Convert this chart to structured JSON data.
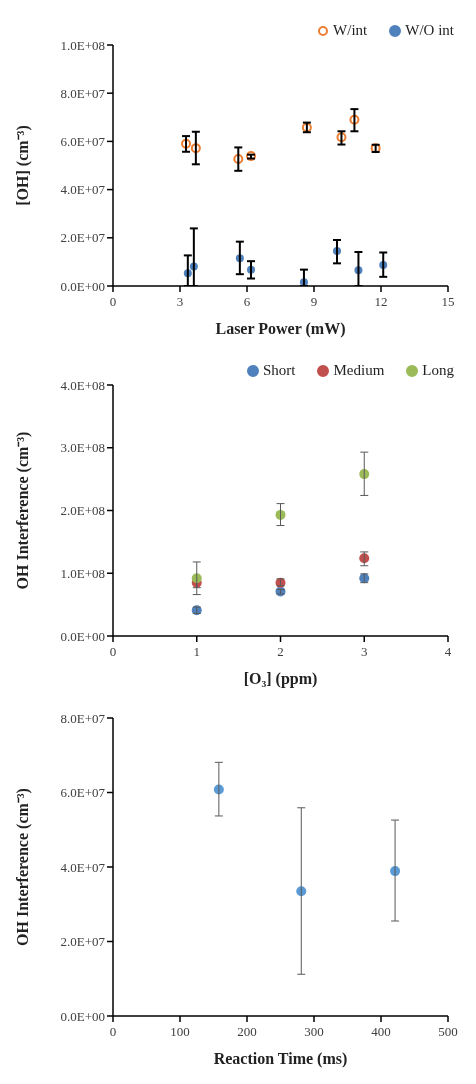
{
  "chart_data": [
    {
      "type": "scatter",
      "xlabel": "Laser Power (mW)",
      "ylabel": "[OH] (cm⁻³)",
      "xlim": [
        0,
        15
      ],
      "xticks": [
        0,
        3,
        6,
        9,
        12,
        15
      ],
      "ylim": [
        0,
        100000000
      ],
      "yticks": [
        {
          "value": 0,
          "label": "0.0E+00"
        },
        {
          "value": 20000000,
          "label": "2.0E+07"
        },
        {
          "value": 40000000,
          "label": "4.0E+07"
        },
        {
          "value": 60000000,
          "label": "6.0E+07"
        },
        {
          "value": 80000000,
          "label": "8.0E+07"
        },
        {
          "value": 100000000,
          "label": "1.0E+08"
        }
      ],
      "legend": "top right",
      "marker": "circle",
      "series": [
        {
          "name": "W/int",
          "color": "#ed7d31",
          "x": [
            3.27,
            3.71,
            5.61,
            6.18,
            8.68,
            10.23,
            10.81,
            11.76
          ],
          "values": [
            59000000,
            57200000,
            52700000,
            53900000,
            65800000,
            61700000,
            69000000,
            57200000
          ],
          "errors": [
            [
              55700000,
              62200000
            ],
            [
              50500000,
              64000000
            ],
            [
              47800000,
              57500000
            ],
            [
              52900000,
              54500000
            ],
            [
              63800000,
              67800000
            ],
            [
              58700000,
              64200000
            ],
            [
              64200000,
              73400000
            ],
            [
              55600000,
              58600000
            ]
          ]
        },
        {
          "name": "W/O int",
          "color": "#4f81bd",
          "x": [
            3.35,
            3.62,
            5.68,
            6.18,
            8.55,
            10.03,
            10.99,
            12.1
          ],
          "values": [
            5300000,
            8100000,
            11500000,
            6700000,
            1600000,
            14500000,
            6500000,
            8700000
          ],
          "errors": [
            [
              0,
              12700000
            ],
            [
              0,
              23900000
            ],
            [
              4900000,
              18400000
            ],
            [
              3100000,
              10300000
            ],
            [
              0,
              6800000
            ],
            [
              9400000,
              19100000
            ],
            [
              0,
              14100000
            ],
            [
              3800000,
              13900000
            ]
          ]
        }
      ]
    },
    {
      "type": "scatter",
      "xlabel": "[O₃] (ppm)",
      "ylabel": "OH Interference (cm⁻³)",
      "xlim": [
        0,
        4
      ],
      "xticks": [
        0,
        1,
        2,
        3,
        4
      ],
      "ylim": [
        0,
        400000000
      ],
      "yticks": [
        {
          "value": 0,
          "label": "0.0E+00"
        },
        {
          "value": 100000000,
          "label": "1.0E+08"
        },
        {
          "value": 200000000,
          "label": "2.0E+08"
        },
        {
          "value": 300000000,
          "label": "3.0E+08"
        },
        {
          "value": 400000000,
          "label": "4.0E+08"
        }
      ],
      "legend": "top right",
      "marker": "circle",
      "x": [
        1,
        2,
        3
      ],
      "series": [
        {
          "name": "Short",
          "color": "#4f81bd",
          "values": [
            41000000,
            71000000,
            92000000
          ],
          "errors": [
            [
              36000000,
              46000000
            ],
            [
              67000000,
              74000000
            ],
            [
              85000000,
              99000000
            ]
          ]
        },
        {
          "name": "Medium",
          "color": "#c0504d",
          "values": [
            85000000,
            85000000,
            124000000
          ],
          "errors": [
            [
              77000000,
              92000000
            ],
            [
              80000000,
              91000000
            ],
            [
              112000000,
              134000000
            ]
          ]
        },
        {
          "name": "Long",
          "color": "#9bbb59",
          "values": [
            92000000,
            193000000,
            258000000
          ],
          "errors": [
            [
              66000000,
              118000000
            ],
            [
              176000000,
              211000000
            ],
            [
              224000000,
              293000000
            ]
          ]
        }
      ]
    },
    {
      "type": "scatter",
      "xlabel": "Reaction Time (ms)",
      "ylabel": "OH Interference (cm⁻³)",
      "xlim": [
        0,
        500
      ],
      "xticks": [
        0,
        100,
        200,
        300,
        400,
        500
      ],
      "ylim": [
        0,
        80000000
      ],
      "yticks": [
        {
          "value": 0,
          "label": "0.0E+00"
        },
        {
          "value": 20000000,
          "label": "2.0E+07"
        },
        {
          "value": 40000000,
          "label": "4.0E+07"
        },
        {
          "value": 60000000,
          "label": "6.0E+07"
        },
        {
          "value": 80000000,
          "label": "8.0E+07"
        }
      ],
      "marker": "circle",
      "series": [
        {
          "color": "#5b9bd5",
          "x": [
            158,
            281,
            421
          ],
          "values": [
            60800000,
            33500000,
            38900000
          ],
          "errors": [
            [
              53700000,
              68100000
            ],
            [
              11200000,
              55900000
            ],
            [
              25500000,
              52600000
            ]
          ]
        }
      ]
    }
  ]
}
